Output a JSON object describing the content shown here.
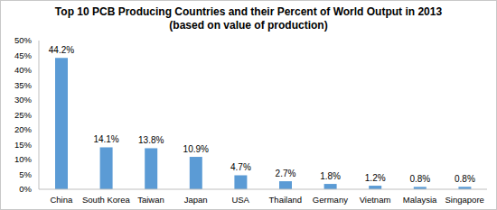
{
  "chart_data": {
    "type": "bar",
    "title": "Top 10 PCB Producing Countries and their Percent of World Output in 2013",
    "subtitle": "(based on value of production)",
    "categories": [
      "China",
      "South Korea",
      "Taiwan",
      "Japan",
      "USA",
      "Thailand",
      "Germany",
      "Vietnam",
      "Malaysia",
      "Singapore"
    ],
    "values": [
      44.2,
      14.1,
      13.8,
      10.9,
      4.7,
      2.7,
      1.8,
      1.2,
      0.8,
      0.8
    ],
    "value_labels": [
      "44.2%",
      "14.1%",
      "13.8%",
      "10.9%",
      "4.7%",
      "2.7%",
      "1.8%",
      "1.2%",
      "0.8%",
      "0.8%"
    ],
    "color": "#5b9bd5",
    "ylim": [
      0,
      50
    ],
    "yticks": [
      {
        "value": 0,
        "label": "0%"
      },
      {
        "value": 5,
        "label": "5%"
      },
      {
        "value": 10,
        "label": "10%"
      },
      {
        "value": 15,
        "label": "15%"
      },
      {
        "value": 20,
        "label": "20%"
      },
      {
        "value": 25,
        "label": "25%"
      },
      {
        "value": 30,
        "label": "30%"
      },
      {
        "value": 35,
        "label": "35%"
      },
      {
        "value": 40,
        "label": "40%"
      },
      {
        "value": 45,
        "label": "45%"
      },
      {
        "value": 50,
        "label": "50%"
      }
    ],
    "grid": false,
    "data_labels": true
  }
}
